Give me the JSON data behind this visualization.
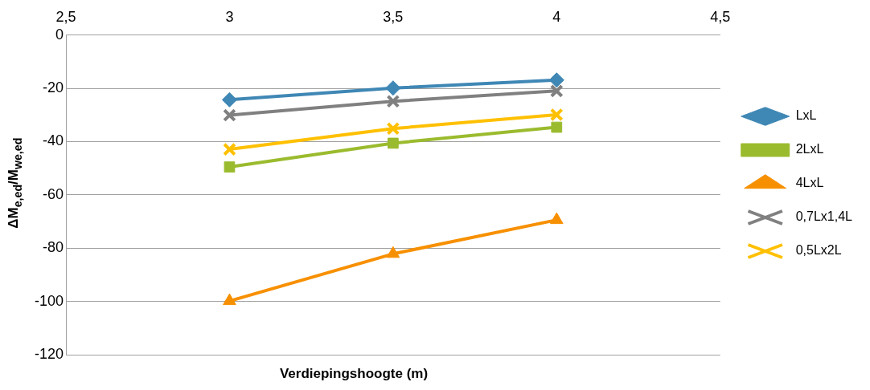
{
  "chart_data": {
    "type": "line",
    "xlabel": "Verdiepingshoogte (m)",
    "ylabel": "ΔM$_{e,ed}$/M$_{we,ed}$",
    "x": [
      3,
      3.5,
      4
    ],
    "xlim": [
      2.5,
      4.5
    ],
    "xticks": [
      {
        "value": 2.5,
        "label": "2,5"
      },
      3,
      {
        "value": 3.5,
        "label": "3,5"
      },
      4,
      {
        "value": 4.5,
        "label": "4,5"
      }
    ],
    "ylim": [
      -120,
      0
    ],
    "yticks": [
      -120,
      -100,
      -80,
      -60,
      -40,
      -20,
      0
    ],
    "grid": "y",
    "legend": "right",
    "line_style": "solid",
    "series": [
      {
        "name": "LxL",
        "color": "#3f87b5",
        "marker": "diamond",
        "values": [
          -24.3,
          -19.9,
          -16.9
        ]
      },
      {
        "name": "2LxL",
        "color": "#9bbb2e",
        "marker": "square",
        "values": [
          -49.5,
          -40.6,
          -34.6
        ]
      },
      {
        "name": "4LxL",
        "color": "#f79000",
        "marker": "triangle",
        "values": [
          -99.8,
          -82.1,
          -69.4
        ]
      },
      {
        "name": "0,7Lx1,4L",
        "color": "#808080",
        "marker": "cross",
        "values": [
          -30.1,
          -24.9,
          -21.0
        ]
      },
      {
        "name": "0,5Lx2L",
        "color": "#ffc000",
        "marker": "cross",
        "values": [
          -42.9,
          -35.1,
          -29.9
        ]
      }
    ]
  }
}
